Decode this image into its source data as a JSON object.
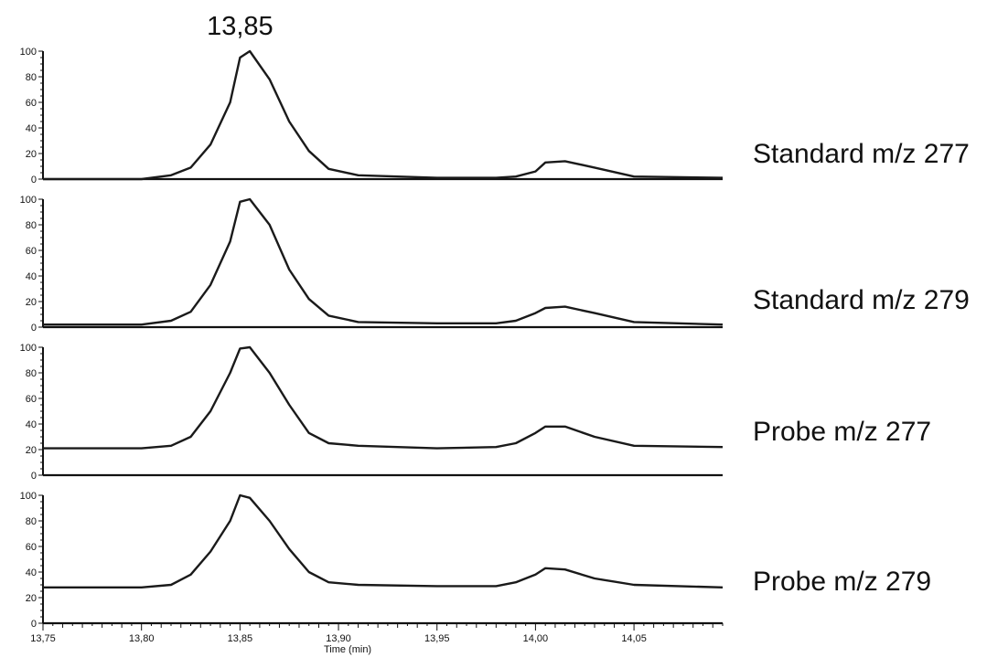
{
  "chart_data": {
    "type": "line",
    "title": "",
    "xlabel": "Time (min)",
    "xlim": [
      13.75,
      14.095
    ],
    "ylim": [
      0,
      100
    ],
    "x_tick_labels": [
      "13,75",
      "13,80",
      "13,85",
      "13,90",
      "13,95",
      "14,00",
      "14,05"
    ],
    "x_tick_values": [
      13.75,
      13.8,
      13.85,
      13.9,
      13.95,
      14.0,
      14.05
    ],
    "y_tick_labels": [
      "0",
      "20",
      "40",
      "60",
      "80",
      "100"
    ],
    "y_tick_values": [
      0,
      20,
      40,
      60,
      80,
      100
    ],
    "grid": false,
    "line_color": "#1a1a1a",
    "annotation": {
      "text": "13,85",
      "x": 13.85
    },
    "panels": [
      {
        "name": "Standard m/z 277",
        "x": [
          13.75,
          13.8,
          13.815,
          13.825,
          13.835,
          13.845,
          13.85,
          13.855,
          13.865,
          13.875,
          13.885,
          13.895,
          13.91,
          13.95,
          13.98,
          13.99,
          14.0,
          14.005,
          14.015,
          14.03,
          14.05,
          14.095
        ],
        "y": [
          0,
          0,
          3,
          9,
          27,
          60,
          95,
          100,
          78,
          45,
          22,
          8,
          3,
          1,
          1,
          2,
          6,
          13,
          14,
          9,
          2,
          1
        ]
      },
      {
        "name": "Standard m/z 279",
        "x": [
          13.75,
          13.8,
          13.815,
          13.825,
          13.835,
          13.845,
          13.85,
          13.855,
          13.865,
          13.875,
          13.885,
          13.895,
          13.91,
          13.95,
          13.98,
          13.99,
          14.0,
          14.005,
          14.015,
          14.03,
          14.05,
          14.095
        ],
        "y": [
          2,
          2,
          5,
          12,
          33,
          67,
          98,
          100,
          80,
          45,
          22,
          9,
          4,
          3,
          3,
          5,
          11,
          15,
          16,
          11,
          4,
          2
        ]
      },
      {
        "name": "Probe m/z 277",
        "x": [
          13.75,
          13.8,
          13.815,
          13.825,
          13.835,
          13.845,
          13.85,
          13.855,
          13.865,
          13.875,
          13.885,
          13.895,
          13.91,
          13.95,
          13.98,
          13.99,
          14.0,
          14.005,
          14.015,
          14.03,
          14.05,
          14.095
        ],
        "y": [
          21,
          21,
          23,
          30,
          50,
          80,
          99,
          100,
          80,
          55,
          33,
          25,
          23,
          21,
          22,
          25,
          33,
          38,
          38,
          30,
          23,
          22
        ]
      },
      {
        "name": "Probe m/z 279",
        "x": [
          13.75,
          13.8,
          13.815,
          13.825,
          13.835,
          13.845,
          13.85,
          13.855,
          13.865,
          13.875,
          13.885,
          13.895,
          13.91,
          13.95,
          13.98,
          13.99,
          14.0,
          14.005,
          14.015,
          14.03,
          14.05,
          14.095
        ],
        "y": [
          28,
          28,
          30,
          38,
          56,
          80,
          100,
          98,
          80,
          58,
          40,
          32,
          30,
          29,
          29,
          32,
          38,
          43,
          42,
          35,
          30,
          28
        ]
      }
    ]
  }
}
